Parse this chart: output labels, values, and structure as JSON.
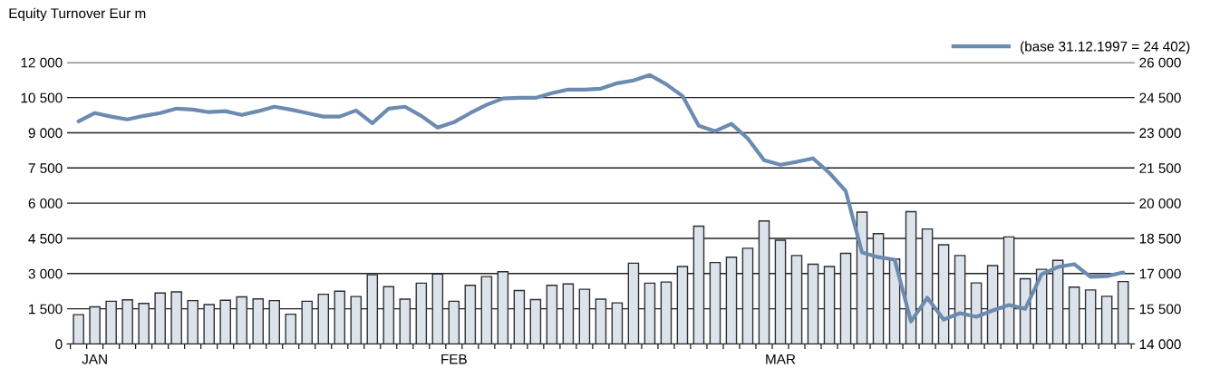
{
  "chart_data": {
    "type": "bar",
    "ylabel": "Equity Turnover Eur m",
    "categories": [
      null,
      "JAN",
      null,
      null,
      null,
      null,
      null,
      null,
      null,
      null,
      null,
      null,
      null,
      null,
      null,
      null,
      null,
      null,
      null,
      null,
      null,
      null,
      null,
      "FEB",
      null,
      null,
      null,
      null,
      null,
      null,
      null,
      null,
      null,
      null,
      null,
      null,
      null,
      null,
      null,
      null,
      null,
      null,
      null,
      "MAR",
      null,
      null,
      null,
      null,
      null,
      null,
      null,
      null,
      null,
      null,
      null,
      null,
      null,
      null,
      null,
      null,
      null,
      null,
      null,
      null,
      null
    ],
    "series": [
      {
        "color": "#dce3ea",
        "values": [
          1250,
          1580,
          1820,
          1880,
          1730,
          2170,
          2220,
          1850,
          1680,
          1860,
          2010,
          1920,
          1850,
          1270,
          1820,
          2120,
          2250,
          2020,
          2950,
          2440,
          1910,
          2590,
          2980,
          1820,
          2500,
          2870,
          3080,
          2280,
          1890,
          2500,
          2560,
          2330,
          1910,
          1750,
          3440,
          2590,
          2640,
          3300,
          5020,
          3470,
          3700,
          4080,
          5240,
          4420,
          3770,
          3400,
          3300,
          3860,
          5620,
          4700,
          3620,
          5640,
          4900,
          4230,
          3770,
          2600,
          3340,
          4560,
          2780,
          3180,
          3560,
          2420,
          2300,
          2030,
          2660
        ]
      },
      {
        "type": "line",
        "axis": "y2",
        "name": "(base 31.12.1997 = 24 402)",
        "color": "#6b8bb0",
        "values": [
          23490,
          23840,
          23690,
          23570,
          23720,
          23840,
          24030,
          23990,
          23880,
          23920,
          23760,
          23920,
          24110,
          23990,
          23840,
          23690,
          23690,
          23950,
          23410,
          24030,
          24110,
          23720,
          23220,
          23450,
          23840,
          24190,
          24460,
          24490,
          24490,
          24690,
          24840,
          24840,
          24880,
          25110,
          25230,
          25460,
          25070,
          24570,
          23300,
          23070,
          23380,
          22760,
          21830,
          21640,
          21760,
          21910,
          21290,
          20520,
          17900,
          17700,
          17590,
          14960,
          15970,
          15040,
          15310,
          15160,
          15430,
          15660,
          15500,
          16970,
          17280,
          17400,
          16860,
          16890,
          17050
        ]
      }
    ],
    "ylim": [
      0,
      12000
    ],
    "yticks": [
      0,
      {
        "value": 1500,
        "label": "1 500"
      },
      {
        "value": 3000,
        "label": "3 000"
      },
      {
        "value": 4500,
        "label": "4 500"
      },
      {
        "value": 6000,
        "label": "6 000"
      },
      {
        "value": 7500,
        "label": "7 500"
      },
      {
        "value": 9000,
        "label": "9 000"
      },
      {
        "value": 10500,
        "label": "10 500"
      },
      {
        "value": 12000,
        "label": "12 000"
      }
    ],
    "y2lim": [
      14000,
      26000
    ],
    "y2ticks": [
      {
        "value": 14000,
        "label": "14 000"
      },
      {
        "value": 15500,
        "label": "15 500"
      },
      {
        "value": 17000,
        "label": "17 000"
      },
      {
        "value": 18500,
        "label": "18 500"
      },
      {
        "value": 20000,
        "label": "20 000"
      },
      {
        "value": 21500,
        "label": "21 500"
      },
      {
        "value": 23000,
        "label": "23 000"
      },
      {
        "value": 24500,
        "label": "24 500"
      },
      {
        "value": 26000,
        "label": "26 000"
      }
    ],
    "grid": "y",
    "legend": "top right",
    "line_style": "solid",
    "marker": "none"
  }
}
